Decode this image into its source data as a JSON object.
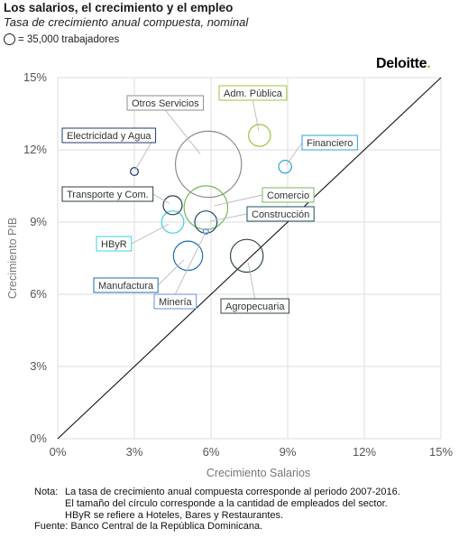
{
  "header": {
    "title": "Los salarios, el crecimiento y el empleo",
    "subtitle": "Tasa de crecimiento anual compuesta, nominal",
    "legend_text": "= 35,000 trabajadores"
  },
  "logo": {
    "text": "Deloitte",
    "dot": ".",
    "dot_color": "#86bc25"
  },
  "chart_data": {
    "type": "scatter",
    "subtype": "bubble",
    "title": "",
    "xlabel": "Crecimiento Salarios",
    "ylabel": "Crecimiento PIB",
    "xlim": [
      0,
      15
    ],
    "ylim": [
      0,
      15
    ],
    "xticks": [
      "0%",
      "3%",
      "6%",
      "9%",
      "12%",
      "15%"
    ],
    "yticks": [
      "0%",
      "3%",
      "6%",
      "9%",
      "12%",
      "15%"
    ],
    "grid": true,
    "reference_line": "y = x",
    "bubble_size_unit": 35000,
    "series": [
      {
        "name": "Otros Servicios",
        "x": 5.9,
        "y": 11.4,
        "size": 31.7,
        "color": "#8c8c8c"
      },
      {
        "name": "Agropecuaria",
        "x": 7.4,
        "y": 7.6,
        "size": 7.8,
        "color": "#2e4a3a"
      },
      {
        "name": "Comercio",
        "x": 5.8,
        "y": 9.6,
        "size": 13.8,
        "color": "#74b959"
      },
      {
        "name": "Manufactura",
        "x": 5.1,
        "y": 7.6,
        "size": 6.2,
        "color": "#1d6bb3"
      },
      {
        "name": "Adm. Pública",
        "x": 7.9,
        "y": 12.6,
        "size": 3.5,
        "color": "#9bc53d"
      },
      {
        "name": "Transporte y Com.",
        "x": 4.5,
        "y": 9.7,
        "size": 2.6,
        "color": "#2a3d47"
      },
      {
        "name": "HByR",
        "x": 4.5,
        "y": 9.0,
        "size": 3.6,
        "color": "#3fd0df"
      },
      {
        "name": "Construcción",
        "x": 5.8,
        "y": 9.0,
        "size": 3.6,
        "color": "#1e4f62"
      },
      {
        "name": "Financiero",
        "x": 8.9,
        "y": 11.3,
        "size": 1.2,
        "color": "#2aa4d6"
      },
      {
        "name": "Electricidad y Agua",
        "x": 3.0,
        "y": 11.1,
        "size": 0.45,
        "color": "#1f3c6e"
      },
      {
        "name": "Minería",
        "x": 5.8,
        "y": 8.6,
        "size": 0.2,
        "color": "#6a8be6"
      }
    ]
  },
  "notes": {
    "nota_label": "Nota:",
    "nota_line1": "La tasa de crecimiento anual compuesta corresponde al periodo 2007-2016.",
    "nota_line2": "El tamaño del círculo corresponde a la cantidad de empleados del sector.",
    "nota_line3": "HByR se refiere a Hoteles, Bares y Restaurantes.",
    "fuente_label": "Fuente:",
    "fuente_text": "Banco Central de la República Dominicana."
  }
}
